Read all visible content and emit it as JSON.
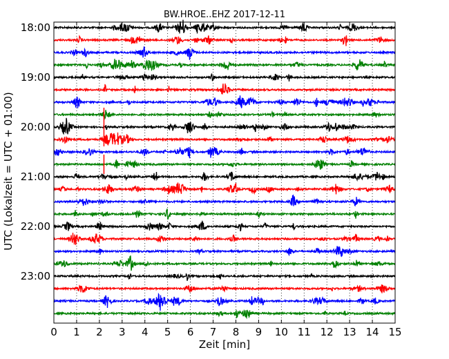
{
  "chart_data": {
    "type": "line",
    "title": "BW.HROE..EHZ 2017-12-11",
    "xlabel": "Zeit  [min]",
    "ylabel": "UTC (Lokalzeit = UTC + 01:00)",
    "xlim": [
      0,
      15
    ],
    "x_ticks": [
      "0",
      "1",
      "2",
      "3",
      "4",
      "5",
      "6",
      "7",
      "8",
      "9",
      "10",
      "11",
      "12",
      "13",
      "14",
      "15"
    ],
    "y_ticks": [
      "18:00",
      "19:00",
      "20:00",
      "21:00",
      "22:00",
      "23:00"
    ],
    "grid_x": "dotted",
    "row_interval_min": 15,
    "trace_colors": [
      "#000000",
      "#ff0000",
      "#0000ff",
      "#008000"
    ],
    "rows": [
      {
        "start": "18:00",
        "color": "#000000"
      },
      {
        "start": "18:15",
        "color": "#ff0000"
      },
      {
        "start": "18:30",
        "color": "#0000ff"
      },
      {
        "start": "18:45",
        "color": "#008000"
      },
      {
        "start": "19:00",
        "color": "#000000"
      },
      {
        "start": "19:15",
        "color": "#ff0000"
      },
      {
        "start": "19:30",
        "color": "#0000ff"
      },
      {
        "start": "19:45",
        "color": "#008000"
      },
      {
        "start": "20:00",
        "color": "#000000"
      },
      {
        "start": "20:15",
        "color": "#ff0000"
      },
      {
        "start": "20:30",
        "color": "#0000ff"
      },
      {
        "start": "20:45",
        "color": "#008000"
      },
      {
        "start": "21:00",
        "color": "#000000"
      },
      {
        "start": "21:15",
        "color": "#ff0000"
      },
      {
        "start": "21:30",
        "color": "#0000ff"
      },
      {
        "start": "21:45",
        "color": "#008000"
      },
      {
        "start": "22:00",
        "color": "#000000"
      },
      {
        "start": "22:15",
        "color": "#ff0000"
      },
      {
        "start": "22:30",
        "color": "#0000ff"
      },
      {
        "start": "22:45",
        "color": "#008000"
      },
      {
        "start": "23:00",
        "color": "#000000"
      },
      {
        "start": "23:15",
        "color": "#ff0000"
      },
      {
        "start": "23:30",
        "color": "#0000ff"
      },
      {
        "start": "23:45",
        "color": "#008000"
      }
    ]
  }
}
